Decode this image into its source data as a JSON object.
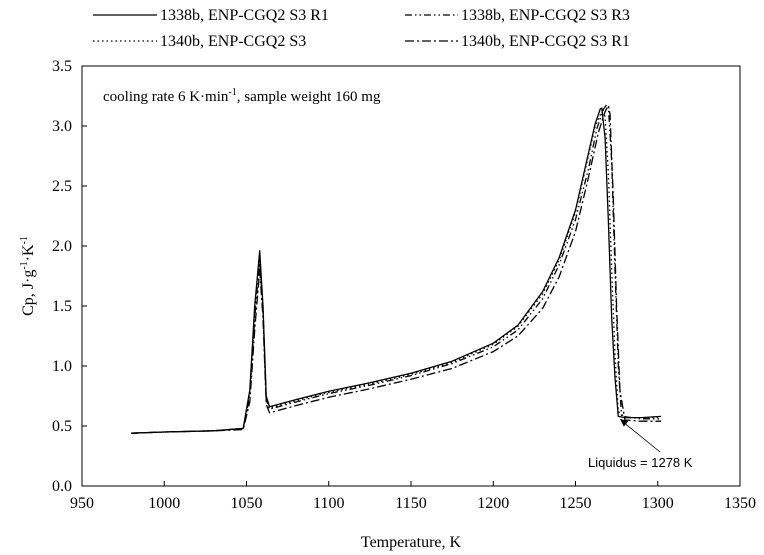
{
  "chart_data": {
    "type": "line",
    "title": "",
    "xlabel": "Temperature, K",
    "ylabel": "Cp, J·g⁻¹·K⁻¹",
    "xlim": [
      950,
      1350
    ],
    "ylim": [
      0,
      3.5
    ],
    "xticks": [
      "950",
      "1000",
      "1050",
      "1100",
      "1150",
      "1200",
      "1250",
      "1300",
      "1350"
    ],
    "yticks": [
      "0.0",
      "0.5",
      "1.0",
      "1.5",
      "2.0",
      "2.5",
      "3.0",
      "3.5"
    ],
    "grid": false,
    "legend_position": "top",
    "annotation_text": "cooling rate 6 K·min",
    "annotation_sup": "-1",
    "annotation_rest": ", sample weight 160 mg",
    "liquidus_label": "Liquidus = 1278 K",
    "liquidus_point": [
      1277,
      0.56
    ],
    "series": [
      {
        "name": "1338b, ENP-CGQ2 S3 R1",
        "style": "solid",
        "x": [
          980,
          1000,
          1030,
          1048,
          1052,
          1055,
          1058,
          1060,
          1062,
          1064,
          1080,
          1100,
          1125,
          1150,
          1175,
          1200,
          1215,
          1230,
          1240,
          1250,
          1257,
          1262,
          1265,
          1266,
          1268,
          1270,
          1272,
          1274,
          1276,
          1280,
          1290,
          1302
        ],
        "y": [
          0.44,
          0.45,
          0.46,
          0.48,
          0.8,
          1.5,
          1.96,
          1.5,
          0.75,
          0.66,
          0.72,
          0.79,
          0.86,
          0.94,
          1.04,
          1.19,
          1.34,
          1.62,
          1.9,
          2.3,
          2.72,
          3.02,
          3.14,
          3.15,
          2.9,
          2.2,
          1.4,
          0.9,
          0.58,
          0.57,
          0.57,
          0.58
        ]
      },
      {
        "name": "1340b, ENP-CGQ2 S3",
        "style": "dotted",
        "x": [
          980,
          1000,
          1030,
          1048,
          1052,
          1055,
          1058,
          1060,
          1062,
          1064,
          1080,
          1100,
          1125,
          1150,
          1175,
          1200,
          1215,
          1230,
          1240,
          1250,
          1257,
          1262,
          1266,
          1268,
          1270,
          1272,
          1274,
          1276,
          1280,
          1290,
          1302
        ],
        "y": [
          0.44,
          0.45,
          0.46,
          0.48,
          0.78,
          1.45,
          1.92,
          1.48,
          0.74,
          0.65,
          0.71,
          0.78,
          0.85,
          0.93,
          1.03,
          1.18,
          1.33,
          1.6,
          1.88,
          2.28,
          2.7,
          3.0,
          3.12,
          3.08,
          2.6,
          1.8,
          1.1,
          0.62,
          0.57,
          0.57,
          0.57
        ]
      },
      {
        "name": "1338b, ENP-CGQ2 S3 R3",
        "style": "dashdotdot",
        "x": [
          980,
          1000,
          1030,
          1048,
          1052,
          1055,
          1058,
          1060,
          1062,
          1064,
          1080,
          1100,
          1125,
          1150,
          1175,
          1200,
          1215,
          1230,
          1240,
          1250,
          1258,
          1263,
          1267,
          1269,
          1270,
          1272,
          1274,
          1276,
          1278,
          1290,
          1302
        ],
        "y": [
          0.44,
          0.45,
          0.46,
          0.48,
          0.75,
          1.4,
          1.88,
          1.45,
          0.72,
          0.64,
          0.7,
          0.77,
          0.84,
          0.92,
          1.02,
          1.16,
          1.3,
          1.56,
          1.84,
          2.22,
          2.65,
          2.98,
          3.14,
          3.18,
          3.16,
          2.7,
          1.8,
          1.0,
          0.58,
          0.56,
          0.56
        ]
      },
      {
        "name": "1340b, ENP-CGQ2 S3 R1",
        "style": "dashdot",
        "x": [
          980,
          1000,
          1030,
          1048,
          1052,
          1055,
          1058,
          1060,
          1062,
          1064,
          1080,
          1100,
          1125,
          1150,
          1175,
          1200,
          1215,
          1230,
          1240,
          1250,
          1258,
          1264,
          1268,
          1270,
          1271,
          1273,
          1275,
          1277,
          1280,
          1290,
          1302
        ],
        "y": [
          0.44,
          0.45,
          0.46,
          0.47,
          0.7,
          1.3,
          1.8,
          1.4,
          0.68,
          0.61,
          0.67,
          0.74,
          0.81,
          0.89,
          0.98,
          1.12,
          1.25,
          1.48,
          1.74,
          2.12,
          2.58,
          2.95,
          3.12,
          3.17,
          3.1,
          2.4,
          1.5,
          0.8,
          0.55,
          0.54,
          0.54
        ]
      }
    ]
  }
}
